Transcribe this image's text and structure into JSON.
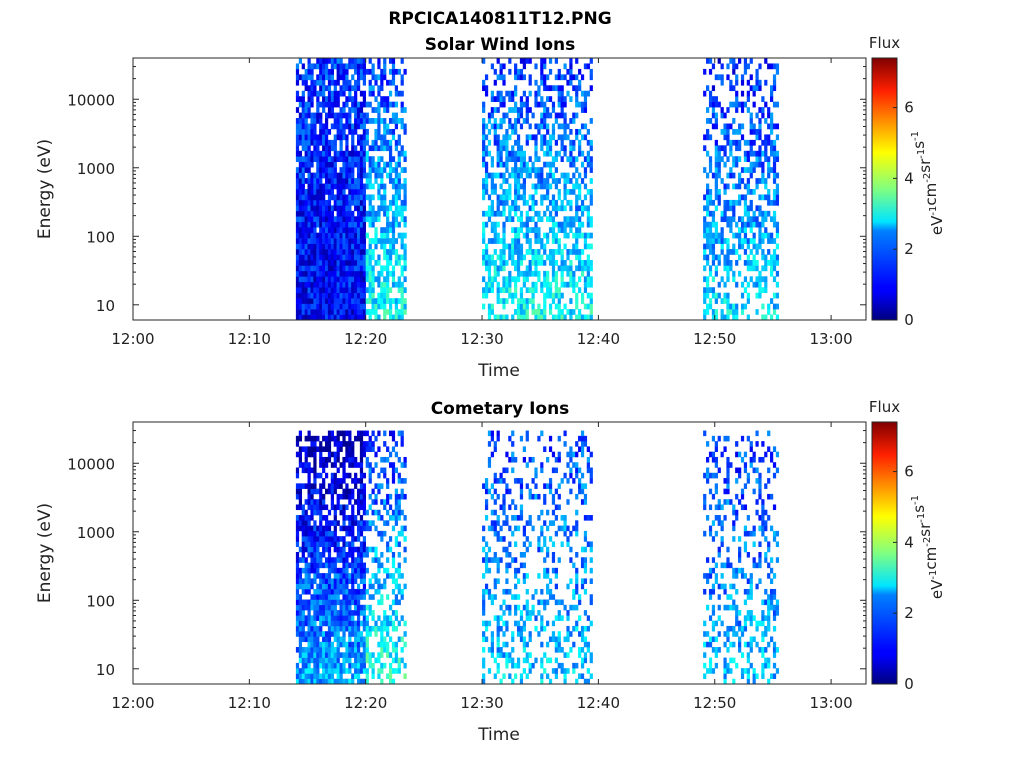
{
  "chart_data": [
    {
      "type": "heatmap",
      "file_title": "RPCICA140811T12.PNG",
      "title": "Solar Wind Ions",
      "xlabel": "Time",
      "ylabel": "Energy (eV)",
      "x_ticks": [
        "12:00",
        "12:10",
        "12:20",
        "12:30",
        "12:40",
        "12:50",
        "13:00"
      ],
      "y_ticks": [
        "10",
        "100",
        "1000",
        "10000"
      ],
      "y_scale": "log",
      "xlim": [
        "12:00",
        "13:03"
      ],
      "ylim": [
        6,
        40000
      ],
      "colorbar": {
        "title": "Flux",
        "label": "eV-1cm-2sr-1s-1",
        "ticks": [
          "0",
          "2",
          "4",
          "6"
        ],
        "range": [
          0,
          7.4
        ],
        "colormap": "jet"
      },
      "blocks": [
        {
          "start": "12:14",
          "end": "12:20",
          "emin": 6,
          "emax": 40000,
          "level_low": 0.9,
          "level_high": 1.3,
          "density": 1.0
        },
        {
          "start": "12:20",
          "end": "12:23.5",
          "emin": 6,
          "emax": 40000,
          "level_low": 2.8,
          "level_high": 1.4,
          "density": 0.7
        },
        {
          "start": "12:30",
          "end": "12:39.5",
          "emin": 6,
          "emax": 40000,
          "level_low": 2.8,
          "level_high": 1.3,
          "density": 0.6
        },
        {
          "start": "12:49",
          "end": "12:55.5",
          "emin": 6,
          "emax": 40000,
          "level_low": 2.6,
          "level_high": 1.1,
          "density": 0.55
        }
      ]
    },
    {
      "type": "heatmap",
      "title": "Cometary Ions",
      "xlabel": "Time",
      "ylabel": "Energy (eV)",
      "x_ticks": [
        "12:00",
        "12:10",
        "12:20",
        "12:30",
        "12:40",
        "12:50",
        "13:00"
      ],
      "y_ticks": [
        "10",
        "100",
        "1000",
        "10000"
      ],
      "y_scale": "log",
      "xlim": [
        "12:00",
        "13:03"
      ],
      "ylim": [
        6,
        40000
      ],
      "colorbar": {
        "title": "Flux",
        "label": "eV-1cm-2sr-1s-1",
        "ticks": [
          "0",
          "2",
          "4",
          "6"
        ],
        "range": [
          0,
          7.4
        ],
        "colormap": "jet"
      },
      "blocks": [
        {
          "start": "12:14",
          "end": "12:20",
          "emin": 6,
          "emax": 30000,
          "level_low": 2.2,
          "level_high": 0.3,
          "density": 0.9
        },
        {
          "start": "12:20",
          "end": "12:23.5",
          "emin": 6,
          "emax": 30000,
          "level_low": 3.0,
          "level_high": 1.2,
          "density": 0.45
        },
        {
          "start": "12:30",
          "end": "12:39.5",
          "emin": 6,
          "emax": 30000,
          "level_low": 2.4,
          "level_high": 1.4,
          "density": 0.35
        },
        {
          "start": "12:49",
          "end": "12:55.5",
          "emin": 6,
          "emax": 30000,
          "level_low": 2.3,
          "level_high": 1.3,
          "density": 0.35
        }
      ]
    }
  ]
}
